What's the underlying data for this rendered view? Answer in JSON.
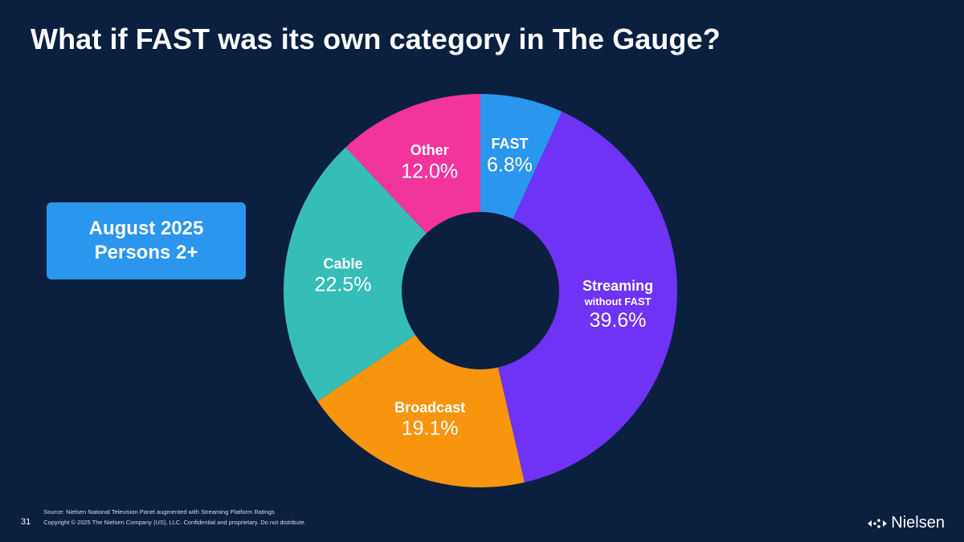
{
  "slide": {
    "title": "What if FAST was its own category in The Gauge?",
    "period_line1": "August 2025",
    "period_line2": "Persons 2+",
    "page_number": "31",
    "source_note": "Source: Nielsen National Television Panel augmented with Streaming Platform Ratings",
    "copyright_note": "Copyright © 2025 The Nielsen Company (US), LLC. Confidential and proprietary. Do not distribute.",
    "brand_name": "Nielsen"
  },
  "chart_data": {
    "type": "pie",
    "style": "donut",
    "title": "What if FAST was its own category in The Gauge?",
    "start_angle_deg": 0,
    "direction": "clockwise",
    "slices": [
      {
        "name": "FAST",
        "subname": "",
        "value": 6.8,
        "label": "6.8%",
        "color": "#2b96ee"
      },
      {
        "name": "Streaming",
        "subname": "without FAST",
        "value": 39.6,
        "label": "39.6%",
        "color": "#6f33f5"
      },
      {
        "name": "Broadcast",
        "subname": "",
        "value": 19.1,
        "label": "19.1%",
        "color": "#f7950f"
      },
      {
        "name": "Cable",
        "subname": "",
        "value": 22.5,
        "label": "22.5%",
        "color": "#37bdb8"
      },
      {
        "name": "Other",
        "subname": "",
        "value": 12.0,
        "label": "12.0%",
        "color": "#f2359d"
      }
    ]
  }
}
